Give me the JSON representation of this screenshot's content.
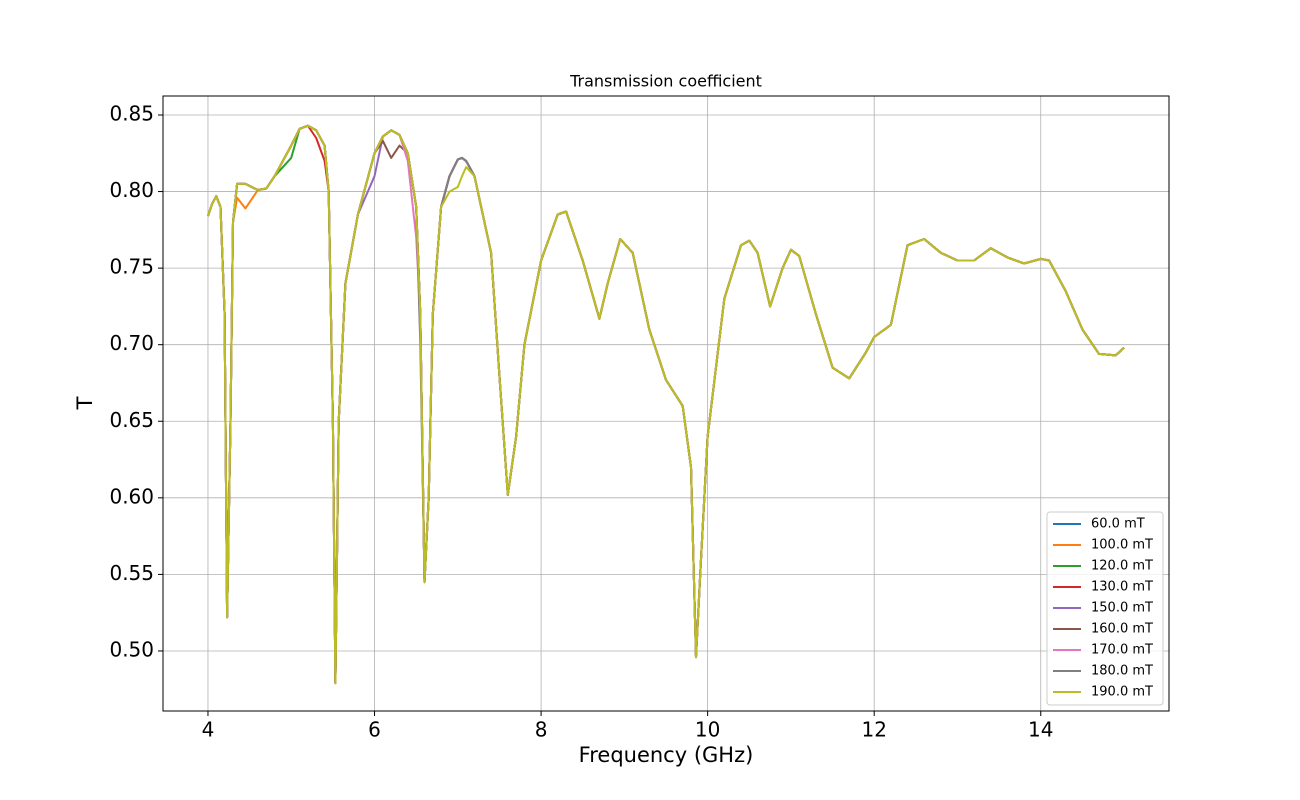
{
  "chart_data": {
    "type": "line",
    "title": "Transmission coefficient",
    "x_label": "Frequency (GHz)",
    "y_label": "T",
    "x": [
      4.0,
      4.05,
      4.1,
      4.15,
      4.2,
      4.23,
      4.27,
      4.3,
      4.35,
      4.45,
      4.6,
      4.7,
      4.8,
      5.0,
      5.1,
      5.2,
      5.3,
      5.4,
      5.45,
      5.5,
      5.53,
      5.57,
      5.65,
      5.8,
      6.0,
      6.1,
      6.2,
      6.3,
      6.4,
      6.5,
      6.55,
      6.6,
      6.65,
      6.7,
      6.8,
      6.9,
      7.0,
      7.05,
      7.1,
      7.2,
      7.4,
      7.5,
      7.6,
      7.7,
      7.8,
      8.0,
      8.2,
      8.3,
      8.5,
      8.7,
      8.8,
      8.95,
      9.1,
      9.3,
      9.5,
      9.7,
      9.8,
      9.86,
      9.92,
      10.0,
      10.2,
      10.4,
      10.5,
      10.6,
      10.75,
      10.9,
      11.0,
      11.1,
      11.3,
      11.5,
      11.7,
      11.9,
      12.0,
      12.2,
      12.4,
      12.6,
      12.8,
      13.0,
      13.2,
      13.4,
      13.6,
      13.8,
      14.0,
      14.1,
      14.3,
      14.5,
      14.7,
      14.9,
      15.0
    ],
    "series": [
      {
        "name": "60.0 mT",
        "color": "#1f77b4",
        "values": [
          0.784,
          0.792,
          0.797,
          0.79,
          0.72,
          0.522,
          0.65,
          0.78,
          0.805,
          0.805,
          0.801,
          0.802,
          0.81,
          0.83,
          0.841,
          0.843,
          0.84,
          0.83,
          0.8,
          0.65,
          0.479,
          0.65,
          0.74,
          0.785,
          0.825,
          0.836,
          0.84,
          0.837,
          0.825,
          0.79,
          0.72,
          0.545,
          0.6,
          0.72,
          0.79,
          0.81,
          0.821,
          0.822,
          0.82,
          0.81,
          0.76,
          0.68,
          0.602,
          0.64,
          0.7,
          0.755,
          0.785,
          0.787,
          0.755,
          0.717,
          0.74,
          0.769,
          0.76,
          0.71,
          0.677,
          0.66,
          0.62,
          0.496,
          0.56,
          0.64,
          0.73,
          0.765,
          0.768,
          0.76,
          0.725,
          0.75,
          0.762,
          0.758,
          0.72,
          0.685,
          0.678,
          0.695,
          0.705,
          0.713,
          0.765,
          0.769,
          0.76,
          0.755,
          0.755,
          0.763,
          0.757,
          0.753,
          0.756,
          0.755,
          0.735,
          0.71,
          0.694,
          0.693,
          0.698
        ]
      },
      {
        "name": "100.0 mT",
        "color": "#ff7f0e",
        "values": [
          0.784,
          0.792,
          0.797,
          0.79,
          0.72,
          0.522,
          0.65,
          0.78,
          0.796,
          0.789,
          0.801,
          0.802,
          0.81,
          0.83,
          0.841,
          0.843,
          0.84,
          0.83,
          0.8,
          0.65,
          0.479,
          0.65,
          0.74,
          0.785,
          0.825,
          0.836,
          0.84,
          0.837,
          0.825,
          0.79,
          0.72,
          0.545,
          0.6,
          0.72,
          0.79,
          0.81,
          0.821,
          0.822,
          0.82,
          0.81,
          0.76,
          0.68,
          0.602,
          0.64,
          0.7,
          0.755,
          0.785,
          0.787,
          0.755,
          0.717,
          0.74,
          0.769,
          0.76,
          0.71,
          0.677,
          0.66,
          0.62,
          0.496,
          0.56,
          0.64,
          0.73,
          0.765,
          0.768,
          0.76,
          0.725,
          0.75,
          0.762,
          0.758,
          0.72,
          0.685,
          0.678,
          0.695,
          0.705,
          0.713,
          0.765,
          0.769,
          0.76,
          0.755,
          0.755,
          0.763,
          0.757,
          0.753,
          0.756,
          0.755,
          0.735,
          0.71,
          0.694,
          0.693,
          0.698
        ]
      },
      {
        "name": "120.0 mT",
        "color": "#2ca02c",
        "values": [
          0.784,
          0.792,
          0.797,
          0.79,
          0.72,
          0.522,
          0.65,
          0.78,
          0.805,
          0.805,
          0.801,
          0.802,
          0.81,
          0.822,
          0.841,
          0.843,
          0.84,
          0.83,
          0.8,
          0.65,
          0.479,
          0.65,
          0.74,
          0.785,
          0.825,
          0.836,
          0.84,
          0.837,
          0.825,
          0.79,
          0.72,
          0.545,
          0.6,
          0.72,
          0.79,
          0.81,
          0.821,
          0.822,
          0.82,
          0.81,
          0.76,
          0.68,
          0.602,
          0.64,
          0.7,
          0.755,
          0.785,
          0.787,
          0.755,
          0.717,
          0.74,
          0.769,
          0.76,
          0.71,
          0.677,
          0.66,
          0.62,
          0.496,
          0.56,
          0.64,
          0.73,
          0.765,
          0.768,
          0.76,
          0.725,
          0.75,
          0.762,
          0.758,
          0.72,
          0.685,
          0.678,
          0.695,
          0.705,
          0.713,
          0.765,
          0.769,
          0.76,
          0.755,
          0.755,
          0.763,
          0.757,
          0.753,
          0.756,
          0.755,
          0.735,
          0.71,
          0.694,
          0.693,
          0.698
        ]
      },
      {
        "name": "130.0 mT",
        "color": "#d62728",
        "values": [
          0.784,
          0.792,
          0.797,
          0.79,
          0.72,
          0.522,
          0.65,
          0.78,
          0.805,
          0.805,
          0.801,
          0.802,
          0.81,
          0.83,
          0.841,
          0.843,
          0.835,
          0.82,
          0.8,
          0.65,
          0.479,
          0.65,
          0.74,
          0.785,
          0.825,
          0.836,
          0.84,
          0.837,
          0.825,
          0.79,
          0.72,
          0.545,
          0.6,
          0.72,
          0.79,
          0.81,
          0.821,
          0.822,
          0.82,
          0.81,
          0.76,
          0.68,
          0.602,
          0.64,
          0.7,
          0.755,
          0.785,
          0.787,
          0.755,
          0.717,
          0.74,
          0.769,
          0.76,
          0.71,
          0.677,
          0.66,
          0.62,
          0.496,
          0.56,
          0.64,
          0.73,
          0.765,
          0.768,
          0.76,
          0.725,
          0.75,
          0.762,
          0.758,
          0.72,
          0.685,
          0.678,
          0.695,
          0.705,
          0.713,
          0.765,
          0.769,
          0.76,
          0.755,
          0.755,
          0.763,
          0.757,
          0.753,
          0.756,
          0.755,
          0.735,
          0.71,
          0.694,
          0.693,
          0.698
        ]
      },
      {
        "name": "150.0 mT",
        "color": "#9467bd",
        "values": [
          0.784,
          0.792,
          0.797,
          0.79,
          0.72,
          0.522,
          0.65,
          0.78,
          0.805,
          0.805,
          0.801,
          0.802,
          0.81,
          0.83,
          0.841,
          0.843,
          0.84,
          0.83,
          0.8,
          0.65,
          0.479,
          0.65,
          0.74,
          0.785,
          0.81,
          0.836,
          0.84,
          0.837,
          0.825,
          0.79,
          0.72,
          0.545,
          0.6,
          0.72,
          0.79,
          0.81,
          0.821,
          0.822,
          0.82,
          0.81,
          0.76,
          0.68,
          0.602,
          0.64,
          0.7,
          0.755,
          0.785,
          0.787,
          0.755,
          0.717,
          0.74,
          0.769,
          0.76,
          0.71,
          0.677,
          0.66,
          0.62,
          0.496,
          0.56,
          0.64,
          0.73,
          0.765,
          0.768,
          0.76,
          0.725,
          0.75,
          0.762,
          0.758,
          0.72,
          0.685,
          0.678,
          0.695,
          0.705,
          0.713,
          0.765,
          0.769,
          0.76,
          0.755,
          0.755,
          0.763,
          0.757,
          0.753,
          0.756,
          0.755,
          0.735,
          0.71,
          0.694,
          0.693,
          0.698
        ]
      },
      {
        "name": "160.0 mT",
        "color": "#8c564b",
        "values": [
          0.784,
          0.792,
          0.797,
          0.79,
          0.72,
          0.522,
          0.65,
          0.78,
          0.805,
          0.805,
          0.801,
          0.802,
          0.81,
          0.83,
          0.841,
          0.843,
          0.84,
          0.83,
          0.8,
          0.65,
          0.479,
          0.65,
          0.74,
          0.785,
          0.825,
          0.833,
          0.822,
          0.83,
          0.825,
          0.79,
          0.72,
          0.545,
          0.6,
          0.72,
          0.79,
          0.81,
          0.821,
          0.822,
          0.82,
          0.81,
          0.76,
          0.68,
          0.602,
          0.64,
          0.7,
          0.755,
          0.785,
          0.787,
          0.755,
          0.717,
          0.74,
          0.769,
          0.76,
          0.71,
          0.677,
          0.66,
          0.62,
          0.496,
          0.56,
          0.64,
          0.73,
          0.765,
          0.768,
          0.76,
          0.725,
          0.75,
          0.762,
          0.758,
          0.72,
          0.685,
          0.678,
          0.695,
          0.705,
          0.713,
          0.765,
          0.769,
          0.76,
          0.755,
          0.755,
          0.763,
          0.757,
          0.753,
          0.756,
          0.755,
          0.735,
          0.71,
          0.694,
          0.693,
          0.698
        ]
      },
      {
        "name": "170.0 mT",
        "color": "#e377c2",
        "values": [
          0.784,
          0.792,
          0.797,
          0.79,
          0.72,
          0.522,
          0.65,
          0.78,
          0.805,
          0.805,
          0.801,
          0.802,
          0.81,
          0.83,
          0.841,
          0.843,
          0.84,
          0.83,
          0.8,
          0.65,
          0.479,
          0.65,
          0.74,
          0.785,
          0.825,
          0.836,
          0.84,
          0.837,
          0.82,
          0.77,
          0.72,
          0.545,
          0.6,
          0.72,
          0.79,
          0.81,
          0.821,
          0.822,
          0.82,
          0.81,
          0.76,
          0.68,
          0.602,
          0.64,
          0.7,
          0.755,
          0.785,
          0.787,
          0.755,
          0.717,
          0.74,
          0.769,
          0.76,
          0.71,
          0.677,
          0.66,
          0.62,
          0.496,
          0.56,
          0.64,
          0.73,
          0.765,
          0.768,
          0.76,
          0.725,
          0.75,
          0.762,
          0.758,
          0.72,
          0.685,
          0.678,
          0.695,
          0.705,
          0.713,
          0.765,
          0.769,
          0.76,
          0.755,
          0.755,
          0.763,
          0.757,
          0.753,
          0.756,
          0.755,
          0.735,
          0.71,
          0.694,
          0.693,
          0.698
        ]
      },
      {
        "name": "180.0 mT",
        "color": "#7f7f7f",
        "values": [
          0.784,
          0.792,
          0.797,
          0.79,
          0.72,
          0.522,
          0.65,
          0.78,
          0.805,
          0.805,
          0.801,
          0.802,
          0.81,
          0.83,
          0.841,
          0.843,
          0.84,
          0.83,
          0.8,
          0.65,
          0.479,
          0.65,
          0.74,
          0.785,
          0.825,
          0.836,
          0.84,
          0.837,
          0.825,
          0.79,
          0.7,
          0.545,
          0.6,
          0.72,
          0.79,
          0.81,
          0.821,
          0.822,
          0.82,
          0.81,
          0.76,
          0.68,
          0.602,
          0.64,
          0.7,
          0.755,
          0.785,
          0.787,
          0.755,
          0.717,
          0.74,
          0.769,
          0.76,
          0.71,
          0.677,
          0.66,
          0.62,
          0.496,
          0.56,
          0.64,
          0.73,
          0.765,
          0.768,
          0.76,
          0.725,
          0.75,
          0.762,
          0.758,
          0.72,
          0.685,
          0.678,
          0.695,
          0.705,
          0.713,
          0.765,
          0.769,
          0.76,
          0.755,
          0.755,
          0.763,
          0.757,
          0.753,
          0.756,
          0.755,
          0.735,
          0.71,
          0.694,
          0.693,
          0.698
        ]
      },
      {
        "name": "190.0 mT",
        "color": "#bcbd22",
        "values": [
          0.784,
          0.792,
          0.797,
          0.79,
          0.72,
          0.522,
          0.65,
          0.78,
          0.805,
          0.805,
          0.801,
          0.802,
          0.81,
          0.83,
          0.841,
          0.843,
          0.84,
          0.83,
          0.8,
          0.65,
          0.479,
          0.65,
          0.74,
          0.785,
          0.825,
          0.836,
          0.84,
          0.837,
          0.825,
          0.79,
          0.72,
          0.545,
          0.6,
          0.72,
          0.79,
          0.8,
          0.803,
          0.81,
          0.816,
          0.81,
          0.76,
          0.68,
          0.602,
          0.64,
          0.7,
          0.755,
          0.785,
          0.787,
          0.755,
          0.717,
          0.74,
          0.769,
          0.76,
          0.71,
          0.677,
          0.66,
          0.62,
          0.496,
          0.56,
          0.64,
          0.73,
          0.765,
          0.768,
          0.76,
          0.725,
          0.75,
          0.762,
          0.758,
          0.72,
          0.685,
          0.678,
          0.695,
          0.705,
          0.713,
          0.765,
          0.769,
          0.76,
          0.755,
          0.755,
          0.763,
          0.757,
          0.753,
          0.756,
          0.755,
          0.735,
          0.71,
          0.694,
          0.693,
          0.698
        ]
      }
    ],
    "xlim": [
      3.46,
      15.54
    ],
    "xticks": [
      4,
      6,
      8,
      10,
      12,
      14
    ],
    "ylim": [
      0.4608,
      0.8624
    ],
    "yticks": [
      {
        "value": 0.5,
        "label": "0.50"
      },
      0.55,
      {
        "value": 0.6,
        "label": "0.60"
      },
      0.65,
      {
        "value": 0.7,
        "label": "0.70"
      },
      0.75,
      {
        "value": 0.8,
        "label": "0.80"
      },
      0.85
    ],
    "grid": true,
    "legend": "lower right"
  }
}
